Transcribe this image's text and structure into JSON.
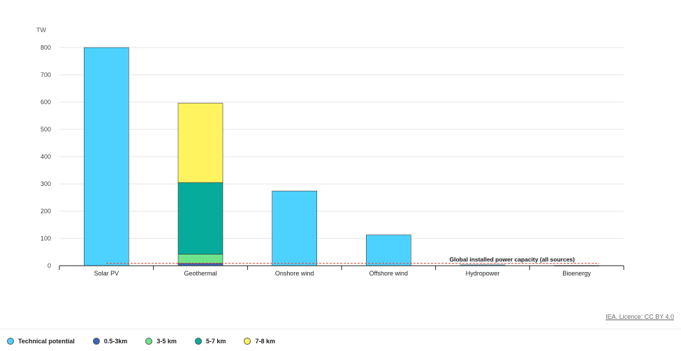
{
  "chart_data": {
    "type": "bar",
    "stacked": true,
    "title": "",
    "xlabel": "",
    "ylabel": "TW",
    "ylim": [
      0,
      800
    ],
    "yticks": [
      0,
      100,
      200,
      300,
      400,
      500,
      600,
      700,
      800
    ],
    "grid": true,
    "categories": [
      "Solar PV",
      "Geothermal",
      "Onshore wind",
      "Offshore wind",
      "Hydropower",
      "Bioenergy"
    ],
    "series": [
      {
        "name": "Technical potential",
        "color": "#4dd2ff",
        "values": [
          800,
          0,
          274,
          113,
          3,
          1
        ]
      },
      {
        "name": "0.5-3km",
        "color": "#3f63b5",
        "values": [
          0,
          9,
          0,
          0,
          0,
          0
        ]
      },
      {
        "name": "3-5 km",
        "color": "#6ee38a",
        "values": [
          0,
          33,
          0,
          0,
          0,
          0
        ]
      },
      {
        "name": "5-7 km",
        "color": "#07ab9c",
        "values": [
          0,
          263,
          0,
          0,
          0,
          0
        ]
      },
      {
        "name": "7-8 km",
        "color": "#fff45d",
        "values": [
          0,
          291,
          0,
          0,
          0,
          0
        ]
      }
    ],
    "reference_line": {
      "label": "Global installed power capacity (all sources)",
      "value": 9,
      "color": "#e84a3d",
      "style": "dashed"
    },
    "legend_position": "bottom-left"
  },
  "credit": "IEA. Licence: CC BY 4.0"
}
